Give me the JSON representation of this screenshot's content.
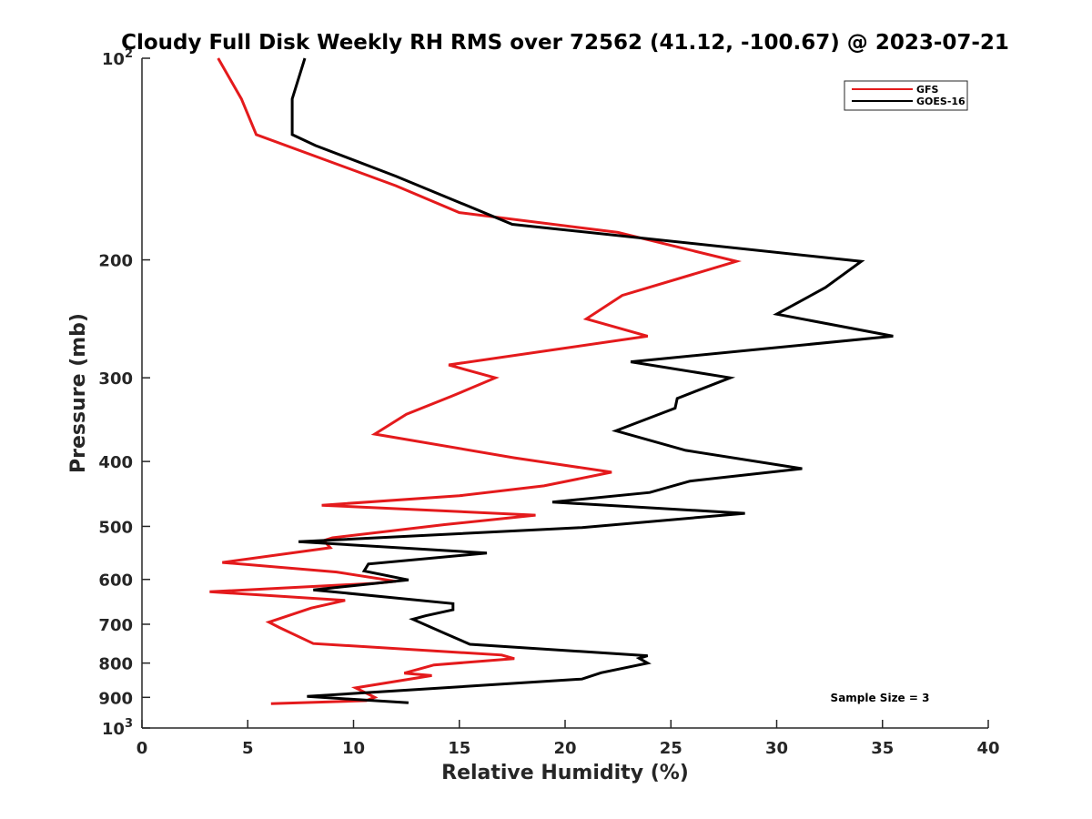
{
  "chart_data": {
    "type": "line",
    "title": "Cloudy Full Disk Weekly RH RMS over 72562 (41.12, -100.67) @ 2023-07-21",
    "xlabel": "Relative Humidity (%)",
    "ylabel": "Pressure (mb)",
    "xlim": [
      0,
      40
    ],
    "ylim": [
      100,
      1000
    ],
    "y_scale": "log",
    "y_reversed": true,
    "x_ticks": [
      0,
      5,
      10,
      15,
      20,
      25,
      30,
      35,
      40
    ],
    "x_tick_labels": [
      "0",
      "5",
      "10",
      "15",
      "20",
      "25",
      "30",
      "35",
      "40"
    ],
    "y_ticks": [
      100,
      200,
      300,
      400,
      500,
      600,
      700,
      800,
      900,
      1000
    ],
    "y_tick_labels": [
      {
        "base": "10",
        "exp": "2"
      },
      {
        "base": "200",
        "exp": ""
      },
      {
        "base": "300",
        "exp": ""
      },
      {
        "base": "400",
        "exp": ""
      },
      {
        "base": "500",
        "exp": ""
      },
      {
        "base": "600",
        "exp": ""
      },
      {
        "base": "700",
        "exp": ""
      },
      {
        "base": "800",
        "exp": ""
      },
      {
        "base": "900",
        "exp": ""
      },
      {
        "base": "10",
        "exp": "3"
      }
    ],
    "grid": false,
    "legend_position": "top-right",
    "series": [
      {
        "name": "GFS",
        "color": "#e41a1c",
        "points": [
          [
            3.6,
            100
          ],
          [
            4.7,
            115
          ],
          [
            5.4,
            130
          ],
          [
            12.0,
            155
          ],
          [
            15.0,
            170
          ],
          [
            22.5,
            182
          ],
          [
            28.1,
            201
          ],
          [
            22.7,
            226
          ],
          [
            21.0,
            245
          ],
          [
            23.9,
            260
          ],
          [
            14.5,
            287
          ],
          [
            16.7,
            300
          ],
          [
            14.6,
            320
          ],
          [
            12.5,
            340
          ],
          [
            11.0,
            364
          ],
          [
            17.6,
            395
          ],
          [
            22.2,
            415
          ],
          [
            19.0,
            435
          ],
          [
            15.0,
            450
          ],
          [
            8.5,
            465
          ],
          [
            18.6,
            481
          ],
          [
            14.3,
            497
          ],
          [
            9.0,
            520
          ],
          [
            8.6,
            525
          ],
          [
            8.9,
            538
          ],
          [
            3.8,
            566
          ],
          [
            9.2,
            585
          ],
          [
            12.0,
            604
          ],
          [
            11.0,
            608
          ],
          [
            3.2,
            626
          ],
          [
            9.6,
            645
          ],
          [
            8.0,
            662
          ],
          [
            6.0,
            695
          ],
          [
            6.5,
            708
          ],
          [
            8.1,
            748
          ],
          [
            17.0,
            778
          ],
          [
            17.6,
            788
          ],
          [
            13.8,
            805
          ],
          [
            12.4,
            828
          ],
          [
            13.7,
            835
          ],
          [
            10.1,
            871
          ],
          [
            11.0,
            900
          ],
          [
            10.6,
            910
          ],
          [
            6.1,
            920
          ]
        ]
      },
      {
        "name": "GOES-16",
        "color": "#000000",
        "points": [
          [
            7.7,
            100
          ],
          [
            7.1,
            115
          ],
          [
            7.1,
            130
          ],
          [
            8.2,
            135
          ],
          [
            12.0,
            150
          ],
          [
            17.5,
            177
          ],
          [
            34.0,
            201
          ],
          [
            32.3,
            220
          ],
          [
            30.0,
            241
          ],
          [
            35.5,
            260
          ],
          [
            23.1,
            284
          ],
          [
            27.8,
            300
          ],
          [
            25.3,
            322
          ],
          [
            25.2,
            333
          ],
          [
            22.4,
            360
          ],
          [
            25.7,
            385
          ],
          [
            31.2,
            410
          ],
          [
            25.9,
            428
          ],
          [
            24.0,
            445
          ],
          [
            19.4,
            460
          ],
          [
            28.5,
            478
          ],
          [
            20.8,
            502
          ],
          [
            7.4,
            527
          ],
          [
            16.3,
            548
          ],
          [
            10.7,
            569
          ],
          [
            10.5,
            583
          ],
          [
            12.6,
            601
          ],
          [
            8.1,
            622
          ],
          [
            14.7,
            652
          ],
          [
            14.7,
            666
          ],
          [
            13.4,
            680
          ],
          [
            12.8,
            688
          ],
          [
            14.3,
            722
          ],
          [
            15.5,
            750
          ],
          [
            23.9,
            780
          ],
          [
            23.5,
            787
          ],
          [
            23.9,
            800
          ],
          [
            21.7,
            827
          ],
          [
            20.8,
            845
          ],
          [
            7.8,
            897
          ],
          [
            12.6,
            917
          ]
        ]
      }
    ],
    "annotations": [
      "Sample Size = 3"
    ]
  }
}
